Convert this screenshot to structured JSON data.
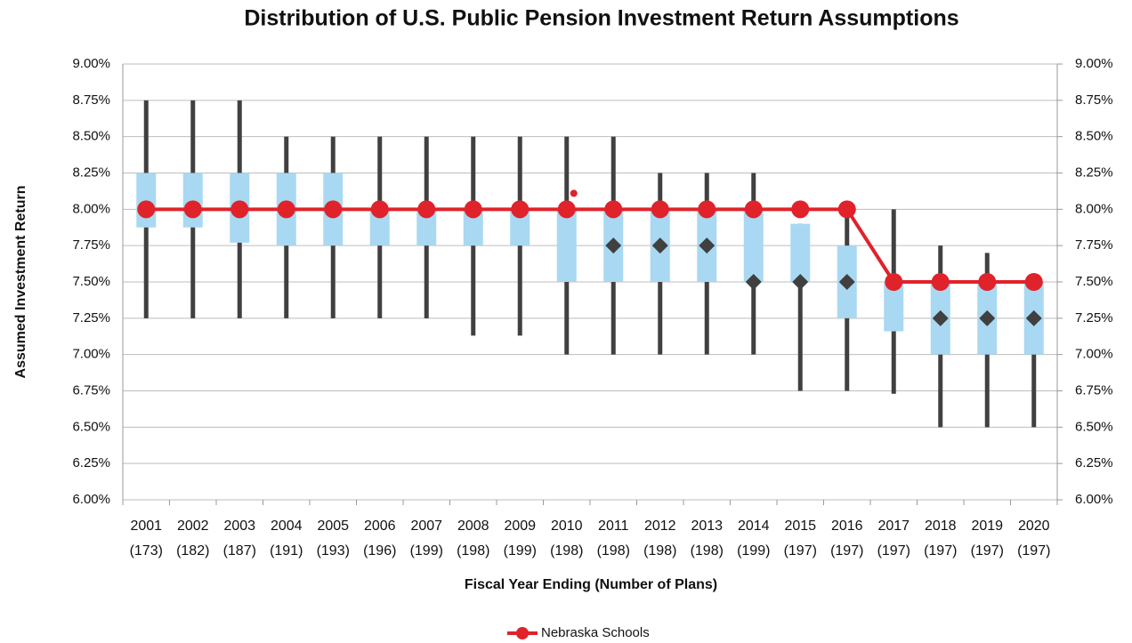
{
  "chart_data": {
    "type": "box",
    "title": "Distribution of U.S. Public Pension Investment Return Assumptions",
    "x_label": "Fiscal Year Ending (Number of Plans)",
    "y_label": "Assumed Investment Return",
    "categories": [
      "2001",
      "2002",
      "2003",
      "2004",
      "2005",
      "2006",
      "2007",
      "2008",
      "2009",
      "2010",
      "2011",
      "2012",
      "2013",
      "2014",
      "2015",
      "2016",
      "2017",
      "2018",
      "2019",
      "2020"
    ],
    "plan_counts": [
      "(173)",
      "(182)",
      "(187)",
      "(191)",
      "(193)",
      "(196)",
      "(199)",
      "(198)",
      "(199)",
      "(198)",
      "(198)",
      "(198)",
      "(198)",
      "(199)",
      "(197)",
      "(197)",
      "(197)",
      "(197)",
      "(197)",
      "(197)"
    ],
    "distribution": {
      "max": [
        8.75,
        8.75,
        8.75,
        8.5,
        8.5,
        8.5,
        8.5,
        8.5,
        8.5,
        8.5,
        8.5,
        8.25,
        8.25,
        8.25,
        7.9,
        8.0,
        8.0,
        7.75,
        7.7,
        7.55
      ],
      "min": [
        7.25,
        7.25,
        7.25,
        7.25,
        7.25,
        7.25,
        7.25,
        7.13,
        7.13,
        7.0,
        7.0,
        7.0,
        7.0,
        7.0,
        6.75,
        6.75,
        6.73,
        6.5,
        6.5,
        6.5
      ],
      "q3": [
        8.25,
        8.25,
        8.25,
        8.25,
        8.25,
        8.0,
        8.0,
        8.0,
        8.0,
        8.0,
        8.0,
        8.0,
        8.0,
        8.0,
        7.9,
        7.75,
        7.5,
        7.5,
        7.5,
        7.5
      ],
      "q1": [
        7.875,
        7.875,
        7.77,
        7.75,
        7.75,
        7.75,
        7.75,
        7.75,
        7.75,
        7.5,
        7.5,
        7.5,
        7.5,
        7.5,
        7.5,
        7.25,
        7.16,
        7.0,
        7.0,
        7.0
      ],
      "median": [
        8.0,
        8.0,
        8.0,
        8.0,
        8.0,
        8.0,
        8.0,
        8.0,
        8.0,
        8.0,
        7.75,
        7.75,
        7.75,
        7.5,
        7.5,
        7.5,
        7.5,
        7.25,
        7.25,
        7.25
      ],
      "whisker_color": "#404040",
      "box_color": "#a9d8f2",
      "median_color": "#404040"
    },
    "series": [
      {
        "name": "Nebraska Schools",
        "color": "#e0222a",
        "values": [
          8.0,
          8.0,
          8.0,
          8.0,
          8.0,
          8.0,
          8.0,
          8.0,
          8.0,
          8.0,
          8.0,
          8.0,
          8.0,
          8.0,
          8.0,
          8.0,
          7.5,
          7.5,
          7.5,
          7.5
        ]
      }
    ],
    "outlier": {
      "category": "2010",
      "value": 8.11,
      "color": "#e0222a"
    },
    "ylim": [
      6.0,
      9.0
    ],
    "yticks": [
      {
        "value": 6.0,
        "label": "6.00%"
      },
      {
        "value": 6.25,
        "label": "6.25%"
      },
      {
        "value": 6.5,
        "label": "6.50%"
      },
      {
        "value": 6.75,
        "label": "6.75%"
      },
      {
        "value": 7.0,
        "label": "7.00%"
      },
      {
        "value": 7.25,
        "label": "7.25%"
      },
      {
        "value": 7.5,
        "label": "7.50%"
      },
      {
        "value": 7.75,
        "label": "7.75%"
      },
      {
        "value": 8.0,
        "label": "8.00%"
      },
      {
        "value": 8.25,
        "label": "8.25%"
      },
      {
        "value": 8.5,
        "label": "8.50%"
      },
      {
        "value": 8.75,
        "label": "8.75%"
      },
      {
        "value": 9.0,
        "label": "9.00%"
      }
    ],
    "y2lim": [
      6.0,
      9.0
    ],
    "y2ticks": [
      {
        "value": 6.0,
        "label": "6.00%"
      },
      {
        "value": 6.25,
        "label": "6.25%"
      },
      {
        "value": 6.5,
        "label": "6.50%"
      },
      {
        "value": 6.75,
        "label": "6.75%"
      },
      {
        "value": 7.0,
        "label": "7.00%"
      },
      {
        "value": 7.25,
        "label": "7.25%"
      },
      {
        "value": 7.5,
        "label": "7.50%"
      },
      {
        "value": 7.75,
        "label": "7.75%"
      },
      {
        "value": 8.0,
        "label": "8.00%"
      },
      {
        "value": 8.25,
        "label": "8.25%"
      },
      {
        "value": 8.5,
        "label": "8.50%"
      },
      {
        "value": 8.75,
        "label": "8.75%"
      },
      {
        "value": 9.0,
        "label": "9.00%"
      }
    ],
    "grid": true,
    "legend": "bottom"
  }
}
